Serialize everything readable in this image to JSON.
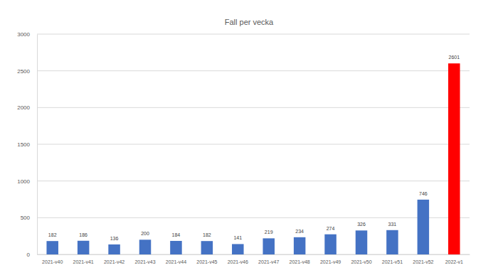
{
  "chart_data": {
    "type": "bar",
    "title": "Fall per vecka",
    "categories": [
      "2021-v40",
      "2021-v41",
      "2021-v42",
      "2021-v43",
      "2021-v44",
      "2021-v45",
      "2021-v46",
      "2021-v47",
      "2021-v48",
      "2021-v49",
      "2021-v50",
      "2021-v51",
      "2021-v52",
      "2022-v1"
    ],
    "values": [
      182,
      186,
      136,
      200,
      184,
      182,
      141,
      219,
      234,
      274,
      326,
      331,
      746,
      2601
    ],
    "colors": [
      "#4472c4",
      "#4472c4",
      "#4472c4",
      "#4472c4",
      "#4472c4",
      "#4472c4",
      "#4472c4",
      "#4472c4",
      "#4472c4",
      "#4472c4",
      "#4472c4",
      "#4472c4",
      "#4472c4",
      "#ff0000"
    ],
    "ylim": [
      0,
      3000
    ],
    "yticks": [
      0,
      500,
      1000,
      1500,
      2000,
      2500,
      3000
    ],
    "grid": true,
    "data_labels": true
  }
}
